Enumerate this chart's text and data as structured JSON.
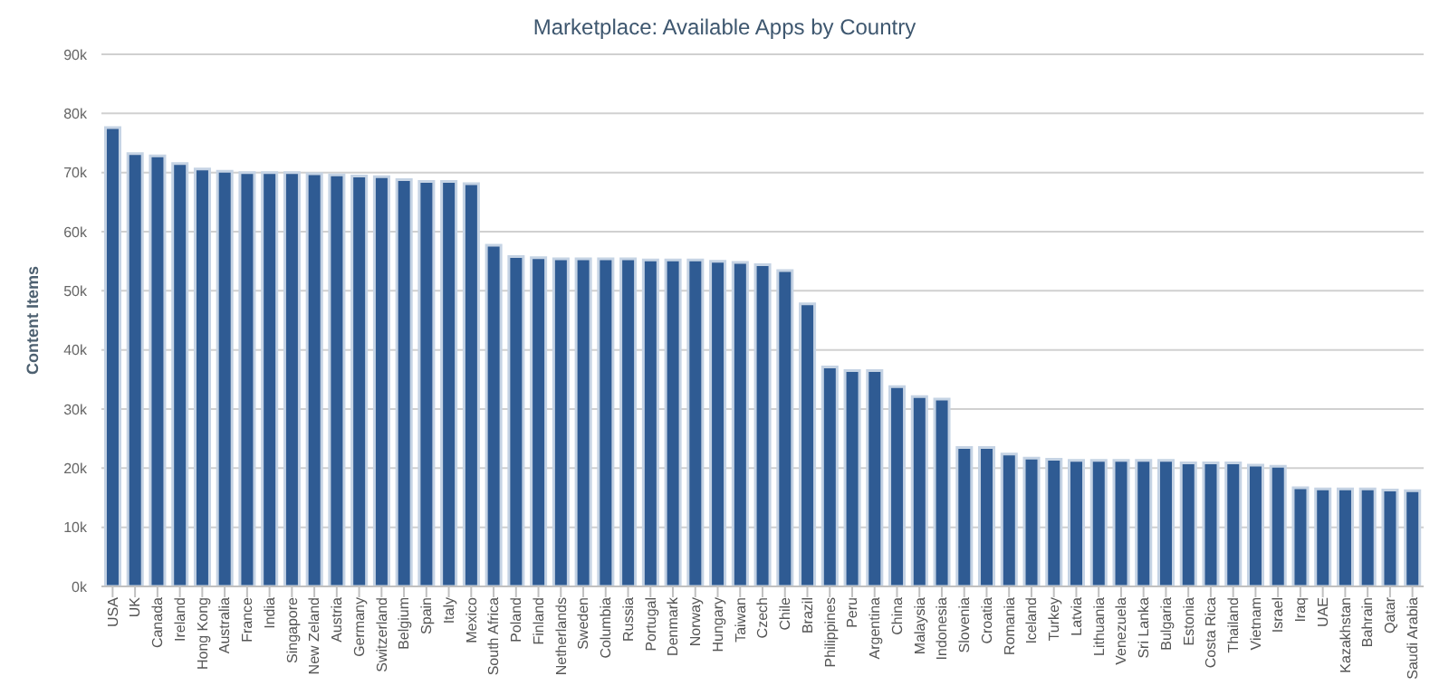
{
  "chart_data": {
    "type": "bar",
    "title": "Marketplace: Available Apps by Country",
    "ylabel": "Content Items",
    "categories": [
      "USA",
      "UK",
      "Canada",
      "Ireland",
      "Hong Kong",
      "Australia",
      "France",
      "India",
      "Singapore",
      "New Zeland",
      "Austria",
      "Germany",
      "Switzerland",
      "Belgium",
      "Spain",
      "Italy",
      "Mexico",
      "South Africa",
      "Poland",
      "Finland",
      "Netherlands",
      "Sweden",
      "Columbia",
      "Russia",
      "Portugal",
      "Denmark",
      "Norway",
      "Hungary",
      "Taiwan",
      "Czech",
      "Chile",
      "Brazil",
      "Philippines",
      "Peru",
      "Argentina",
      "China",
      "Malaysia",
      "Indonesia",
      "Slovenia",
      "Croatia",
      "Romania",
      "Iceland",
      "Turkey",
      "Latvia",
      "Lithuania",
      "Venezuela",
      "Sri Lanka",
      "Bulgaria",
      "Estonia",
      "Costa Rica",
      "Thailand",
      "Vietnam",
      "Israel",
      "Iraq",
      "UAE",
      "Kazakhstan",
      "Bahrain",
      "Qatar",
      "Saudi Arabia"
    ],
    "values": [
      77600,
      73200,
      72800,
      71500,
      70600,
      70200,
      70000,
      70000,
      70000,
      69800,
      69600,
      69400,
      69300,
      68800,
      68500,
      68500,
      68100,
      57700,
      55800,
      55600,
      55400,
      55400,
      55400,
      55400,
      55200,
      55200,
      55200,
      55000,
      54800,
      54400,
      53400,
      47800,
      37100,
      36500,
      36500,
      33800,
      32100,
      31700,
      23500,
      23500,
      22400,
      21700,
      21500,
      21300,
      21300,
      21300,
      21300,
      21300,
      20900,
      20900,
      20900,
      20500,
      20300,
      16700,
      16500,
      16500,
      16500,
      16300,
      16200
    ],
    "color": "#2f5b93",
    "ylim": [
      0,
      90000
    ],
    "yticks": [
      {
        "value": 0,
        "label": "0k"
      },
      {
        "value": 10000,
        "label": "10k"
      },
      {
        "value": 20000,
        "label": "20k"
      },
      {
        "value": 30000,
        "label": "30k"
      },
      {
        "value": 40000,
        "label": "40k"
      },
      {
        "value": 50000,
        "label": "50k"
      },
      {
        "value": 60000,
        "label": "60k"
      },
      {
        "value": 70000,
        "label": "70k"
      },
      {
        "value": 80000,
        "label": "80k"
      },
      {
        "value": 90000,
        "label": "90k"
      }
    ],
    "grid": "y"
  }
}
